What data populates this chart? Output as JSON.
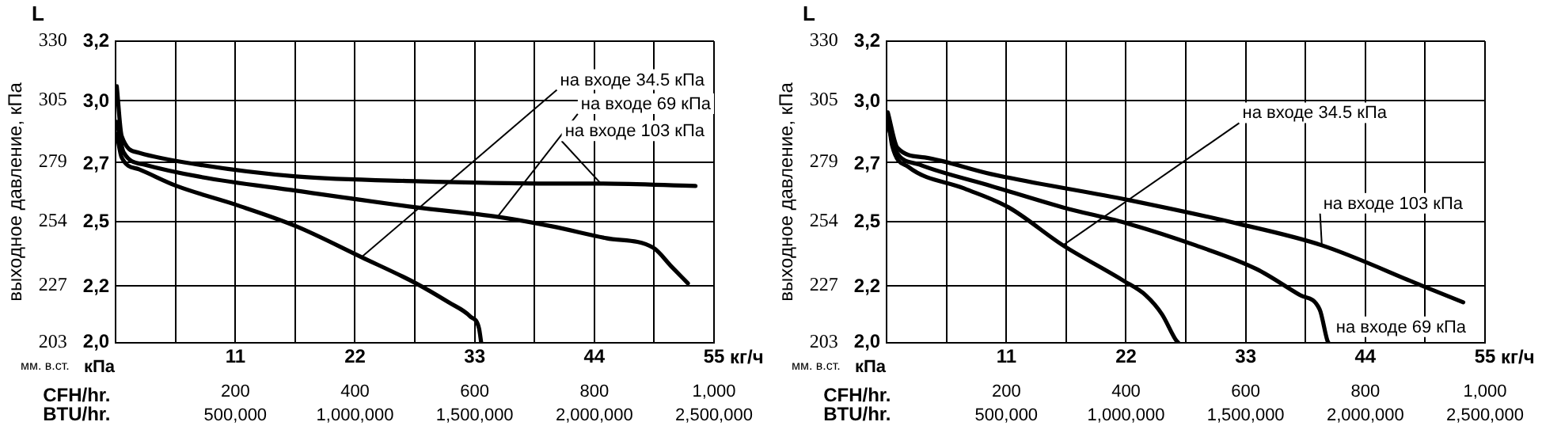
{
  "chart_data": [
    {
      "type": "line",
      "xlabel": "кг/ч",
      "ylabel": "выходное давление, кПа",
      "x2label": "CFH/hr.",
      "annotations": [
        "L",
        "мм. в.ст.",
        "кПа",
        "BTU/hr.",
        "500,000",
        "1,000,000",
        "1,500,000",
        "2,000,000",
        "2,500,000"
      ],
      "xlim": [
        0,
        55
      ],
      "xticks": [
        {
          "value": 0,
          "label": null
        },
        {
          "value": 5.5,
          "label": null
        },
        11,
        {
          "value": 16.5,
          "label": null
        },
        22,
        {
          "value": 27.5,
          "label": null
        },
        33,
        {
          "value": 38.5,
          "label": null
        },
        44,
        {
          "value": 49.5,
          "label": null
        },
        55
      ],
      "x2lim": [
        0,
        1000
      ],
      "x2ticks": [
        200,
        400,
        600,
        800,
        {
          "value": 1000,
          "label": "1,000"
        }
      ],
      "ylim": [
        203,
        330
      ],
      "yticks": [
        203,
        227,
        254,
        279,
        305,
        330
      ],
      "y2lim": [
        1.99,
        3.24
      ],
      "y2ticks": [
        {
          "value": 1.99,
          "label": "2,0"
        },
        {
          "value": 2.22,
          "label": "2,2"
        },
        {
          "value": 2.49,
          "label": "2,5"
        },
        {
          "value": 2.73,
          "label": "2,7"
        },
        {
          "value": 2.99,
          "label": "3,0"
        },
        {
          "value": 3.24,
          "label": "3,2"
        }
      ],
      "grid": true,
      "legend": false,
      "marker": "none",
      "line_style": "solid",
      "series": [
        {
          "name": "на входе 34.5 кПа",
          "color": "#000000",
          "x": [
            0.1,
            0.55,
            2.15,
            5.6,
            11.1,
            16.6,
            22.6,
            27.6,
            30.6,
            32.6,
            33.4,
            33.6
          ],
          "values": [
            291,
            281,
            276,
            269,
            261,
            252,
            239,
            228,
            220,
            214,
            209,
            203
          ]
        },
        {
          "name": "на входе 69 кПа",
          "color": "#000000",
          "x": [
            0.1,
            0.75,
            2.65,
            7.6,
            16.6,
            27.6,
            35.1,
            40.1,
            45.1,
            49.4,
            51.1,
            52.6
          ],
          "values": [
            296,
            283,
            278,
            273,
            267,
            260,
            256,
            252,
            247,
            243,
            235,
            228
          ]
        },
        {
          "name": "на входе 103 кПа",
          "color": "#000000",
          "x": [
            0.1,
            0.55,
            2.15,
            7.6,
            16.6,
            27.6,
            40.1,
            44.6,
            53.3
          ],
          "values": [
            311,
            290,
            283,
            278,
            273,
            271,
            270,
            270,
            269
          ]
        }
      ]
    },
    {
      "type": "line",
      "xlabel": "кг/ч",
      "ylabel": "выходное давление, кПа",
      "x2label": "CFH/hr.",
      "annotations": [
        "L",
        "мм. в.ст.",
        "кПа",
        "BTU/hr.",
        "500,000",
        "1,000,000",
        "1,500,000",
        "2,000,000",
        "2,500,000"
      ],
      "xlim": [
        0,
        55
      ],
      "xticks": [
        {
          "value": 0,
          "label": null
        },
        {
          "value": 5.5,
          "label": null
        },
        11,
        {
          "value": 16.5,
          "label": null
        },
        22,
        {
          "value": 27.5,
          "label": null
        },
        33,
        {
          "value": 38.5,
          "label": null
        },
        44,
        {
          "value": 49.5,
          "label": null
        },
        55
      ],
      "x2lim": [
        0,
        1000
      ],
      "x2ticks": [
        200,
        400,
        600,
        800,
        {
          "value": 1000,
          "label": "1,000"
        }
      ],
      "ylim": [
        203,
        330
      ],
      "yticks": [
        203,
        227,
        254,
        279,
        305,
        330
      ],
      "y2lim": [
        1.99,
        3.24
      ],
      "y2ticks": [
        {
          "value": 1.99,
          "label": "2,0"
        },
        {
          "value": 2.22,
          "label": "2,2"
        },
        {
          "value": 2.49,
          "label": "2,5"
        },
        {
          "value": 2.73,
          "label": "2,7"
        },
        {
          "value": 2.99,
          "label": "3,0"
        },
        {
          "value": 3.24,
          "label": "3,2"
        }
      ],
      "grid": true,
      "legend": false,
      "marker": "none",
      "line_style": "solid",
      "series": [
        {
          "name": "на входе 34.5 кПа",
          "color": "#000000",
          "x": [
            0.1,
            0.5,
            2,
            7.1,
            11.2,
            16.2,
            21.8,
            23.8,
            25.3,
            26.6,
            26.8
          ],
          "values": [
            299,
            286,
            277,
            268,
            260,
            244,
            229,
            223,
            215,
            204,
            203
          ]
        },
        {
          "name": "на входе 69 кПа",
          "color": "#000000",
          "x": [
            0.1,
            0.8,
            3,
            9.6,
            16.2,
            22.3,
            28.4,
            34,
            38,
            39.8,
            40.5,
            40.6
          ],
          "values": [
            295,
            284,
            278,
            269,
            260,
            253,
            244,
            234,
            223,
            217,
            204,
            203
          ]
        },
        {
          "name": "на входе 103 кПа",
          "color": "#000000",
          "x": [
            0.1,
            1,
            3.5,
            9.6,
            22.3,
            32.4,
            40,
            49.2,
            53
          ],
          "values": [
            300,
            285,
            281,
            274,
            263,
            253,
            244,
            227,
            220
          ]
        }
      ]
    }
  ]
}
